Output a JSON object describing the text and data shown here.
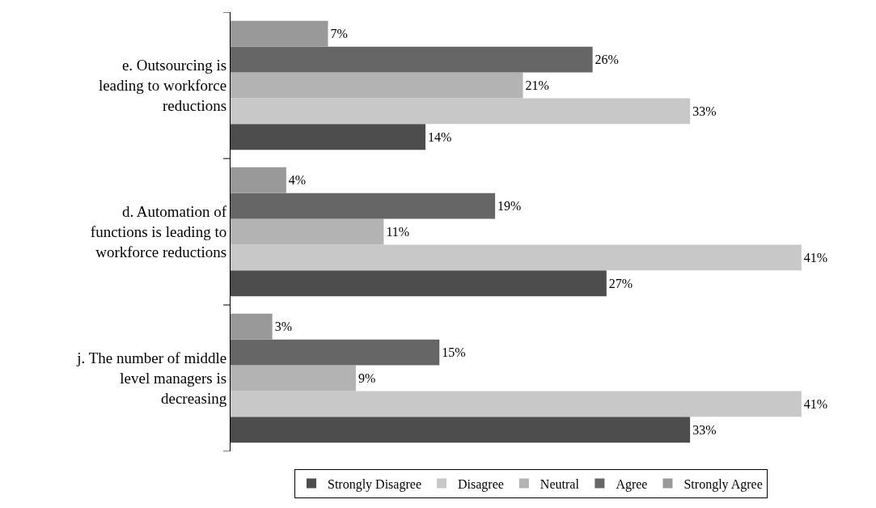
{
  "chart_data": {
    "type": "bar",
    "orientation": "horizontal",
    "categories": [
      "e. Outsourcing is leading to workforce reductions",
      "d. Automation of functions is leading to workforce reductions",
      "j. The number of middle level managers is decreasing"
    ],
    "series": [
      {
        "name": "Strongly Disagree",
        "color": "#4d4d4d",
        "values": [
          14,
          27,
          33
        ],
        "value_labels": [
          "14%",
          "27%",
          "33%"
        ]
      },
      {
        "name": "Disagree",
        "color": "#c8c8c8",
        "values": [
          33,
          41,
          41
        ],
        "value_labels": [
          "33%",
          "41%",
          "41%"
        ]
      },
      {
        "name": "Neutral",
        "color": "#b3b3b3",
        "values": [
          21,
          11,
          9
        ],
        "value_labels": [
          "21%",
          "11%",
          "9%"
        ]
      },
      {
        "name": "Agree",
        "color": "#666666",
        "values": [
          26,
          19,
          15
        ],
        "value_labels": [
          "26%",
          "19%",
          "15%"
        ]
      },
      {
        "name": "Strongly Agree",
        "color": "#999999",
        "values": [
          7,
          4,
          3
        ],
        "value_labels": [
          "7%",
          "4%",
          "3%"
        ]
      }
    ],
    "legend": "bottom"
  }
}
